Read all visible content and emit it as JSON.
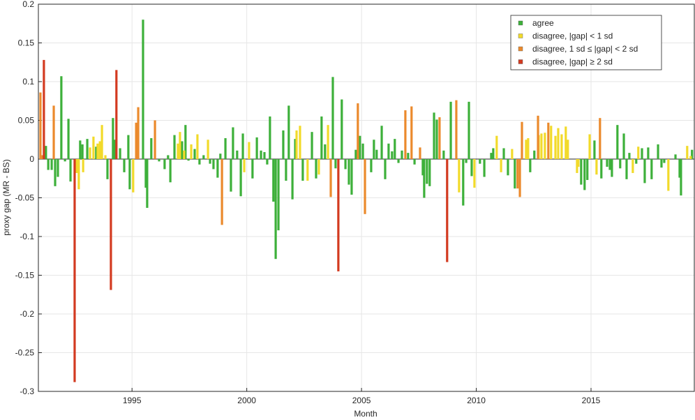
{
  "chart_data": {
    "type": "bar",
    "xlabel": "Month",
    "ylabel": "proxy gap (MR - BS)",
    "xlim": [
      1990.92,
      2019.5
    ],
    "xticks": [
      1995,
      2000,
      2005,
      2010,
      2015
    ],
    "ylim": [
      -0.3,
      0.2
    ],
    "yticks": [
      0.2,
      0.15,
      0.1,
      0.05,
      0,
      -0.05,
      -0.1,
      -0.15,
      -0.2,
      -0.25,
      -0.3
    ],
    "grid": true,
    "legend": "upper right",
    "series": [
      {
        "name": "agree",
        "color": "#3db03a",
        "x": [
          1991.25,
          1991.35,
          1991.5,
          1991.65,
          1991.77,
          1991.92,
          1992.08,
          1992.23,
          1992.32,
          1992.74,
          1992.84,
          1993.05,
          1993.44,
          1993.93,
          1994.17,
          1994.26,
          1994.48,
          1994.66,
          1994.84,
          1994.9,
          1995.48,
          1995.6,
          1995.66,
          1995.84,
          1996.18,
          1996.42,
          1996.57,
          1996.67,
          1996.85,
          1997.18,
          1997.33,
          1997.46,
          1997.73,
          1997.94,
          1998.12,
          1998.4,
          1998.55,
          1998.73,
          1998.85,
          1999.07,
          1999.31,
          1999.4,
          1999.58,
          1999.74,
          1999.83,
          2000.25,
          2000.44,
          2000.62,
          2000.77,
          2000.89,
          2001.01,
          2001.16,
          2001.26,
          2001.38,
          2001.59,
          2001.71,
          2001.83,
          2001.99,
          2002.11,
          2002.44,
          2002.84,
          2003.02,
          2003.26,
          2003.41,
          2003.75,
          2003.87,
          2004.14,
          2004.3,
          2004.45,
          2004.57,
          2004.75,
          2004.93,
          2005.06,
          2005.42,
          2005.54,
          2005.66,
          2005.88,
          2006.03,
          2006.18,
          2006.33,
          2006.45,
          2006.61,
          2006.76,
          2007.03,
          2007.31,
          2007.67,
          2007.73,
          2007.85,
          2007.97,
          2008.16,
          2008.28,
          2008.58,
          2008.89,
          2009.43,
          2009.56,
          2009.68,
          2009.8,
          2010.16,
          2010.35,
          2010.65,
          2010.74,
          2011.2,
          2011.38,
          2011.68,
          2012.35,
          2012.53,
          2014.57,
          2014.72,
          2014.84,
          2015.15,
          2015.45,
          2015.7,
          2015.82,
          2015.91,
          2016.15,
          2016.27,
          2016.43,
          2016.55,
          2016.67,
          2016.97,
          2017.22,
          2017.34,
          2017.49,
          2017.64,
          2017.92,
          2018.07,
          2018.19,
          2018.68,
          2018.86,
          2018.92,
          2019.4
        ],
        "values": [
          0.017,
          -0.014,
          -0.014,
          -0.035,
          -0.023,
          0.107,
          -0.003,
          0.052,
          -0.029,
          0.024,
          0.019,
          0.026,
          0.016,
          -0.026,
          0.053,
          0.025,
          0.014,
          -0.017,
          0.031,
          -0.039,
          0.18,
          -0.037,
          -0.063,
          0.027,
          -0.003,
          -0.013,
          0.005,
          -0.03,
          0.031,
          0.023,
          0.044,
          -0.002,
          0.013,
          -0.007,
          0.005,
          -0.006,
          -0.013,
          -0.024,
          0.007,
          0.027,
          -0.042,
          0.041,
          0.011,
          -0.048,
          0.033,
          -0.025,
          0.028,
          0.011,
          0.009,
          -0.007,
          0.055,
          -0.055,
          -0.129,
          -0.092,
          0.037,
          -0.028,
          0.069,
          -0.052,
          0.026,
          -0.028,
          0.035,
          -0.025,
          0.055,
          0.019,
          0.106,
          -0.012,
          0.077,
          -0.013,
          -0.033,
          -0.046,
          0.012,
          0.03,
          0.02,
          -0.017,
          0.025,
          0.012,
          0.043,
          -0.026,
          0.02,
          0.01,
          0.026,
          -0.005,
          0.011,
          0.008,
          -0.007,
          -0.021,
          -0.05,
          -0.032,
          -0.035,
          0.06,
          0.051,
          0.011,
          0.074,
          -0.06,
          -0.005,
          0.074,
          -0.022,
          -0.006,
          -0.023,
          0.008,
          0.014,
          0.014,
          -0.021,
          -0.038,
          -0.017,
          0.011,
          -0.033,
          -0.04,
          -0.027,
          0.024,
          -0.025,
          -0.01,
          -0.014,
          -0.023,
          0.044,
          -0.012,
          0.033,
          -0.026,
          0.008,
          -0.006,
          0.014,
          -0.031,
          0.015,
          -0.026,
          0.019,
          -0.011,
          -0.005,
          0.006,
          -0.024,
          -0.047,
          0.012
        ]
      },
      {
        "name": "disagree, |gap| < 1 sd",
        "color": "#f2da2a",
        "x": [
          1992.59,
          1992.68,
          1992.87,
          1993.17,
          1993.32,
          1993.5,
          1993.6,
          1993.69,
          1993.84,
          1995.05,
          1997.0,
          1997.09,
          1997.27,
          1997.58,
          1997.85,
          1998.31,
          1999.89,
          2000.1,
          2002.17,
          2002.32,
          2002.65,
          2003.14,
          2003.54,
          2009.25,
          2009.92,
          2010.89,
          2011.08,
          2011.56,
          2012.17,
          2012.26,
          2012.72,
          2012.84,
          2012.99,
          2013.26,
          2013.45,
          2013.57,
          2013.72,
          2013.9,
          2013.99,
          2014.39,
          2014.45,
          2014.94,
          2015.24,
          2016.82,
          2017.06,
          2018.37,
          2019.19,
          2019.34
        ],
        "values": [
          -0.018,
          -0.039,
          -0.017,
          0.015,
          0.029,
          0.02,
          0.023,
          0.044,
          0.005,
          -0.043,
          0.02,
          0.035,
          0.011,
          0.019,
          0.032,
          0.025,
          -0.017,
          0.022,
          0.037,
          0.043,
          -0.028,
          -0.02,
          0.044,
          -0.043,
          -0.037,
          0.03,
          -0.017,
          0.013,
          0.025,
          0.027,
          0.031,
          0.033,
          0.034,
          0.043,
          0.03,
          0.04,
          0.032,
          0.042,
          0.025,
          -0.018,
          -0.01,
          0.032,
          -0.02,
          -0.018,
          0.016,
          -0.041,
          0.017,
          0.004
        ]
      },
      {
        "name": "disagree, 1 sd ≤ |gap| < 2 sd",
        "color": "#eb8a2c",
        "x": [
          1991.01,
          1991.1,
          1991.59,
          1995.18,
          1995.27,
          1996.0,
          1998.92,
          2003.66,
          2004.84,
          2005.15,
          2006.91,
          2007.18,
          2007.55,
          2008.4,
          2009.13,
          2011.8,
          2011.9,
          2011.99,
          2012.69,
          2013.14,
          2015.39
        ],
        "values": [
          0.086,
          0.005,
          0.069,
          0.047,
          0.067,
          0.05,
          -0.085,
          -0.049,
          0.072,
          -0.071,
          0.063,
          0.068,
          0.015,
          0.054,
          0.076,
          -0.038,
          -0.049,
          0.048,
          0.056,
          0.047,
          0.053
        ]
      },
      {
        "name": "disagree, |gap| ≥ 2 sd",
        "color": "#d33a20",
        "x": [
          1991.16,
          1992.5,
          1994.08,
          1994.32,
          2003.99,
          2008.73
        ],
        "values": [
          0.128,
          -0.288,
          -0.169,
          0.115,
          -0.145,
          -0.133
        ]
      }
    ]
  }
}
